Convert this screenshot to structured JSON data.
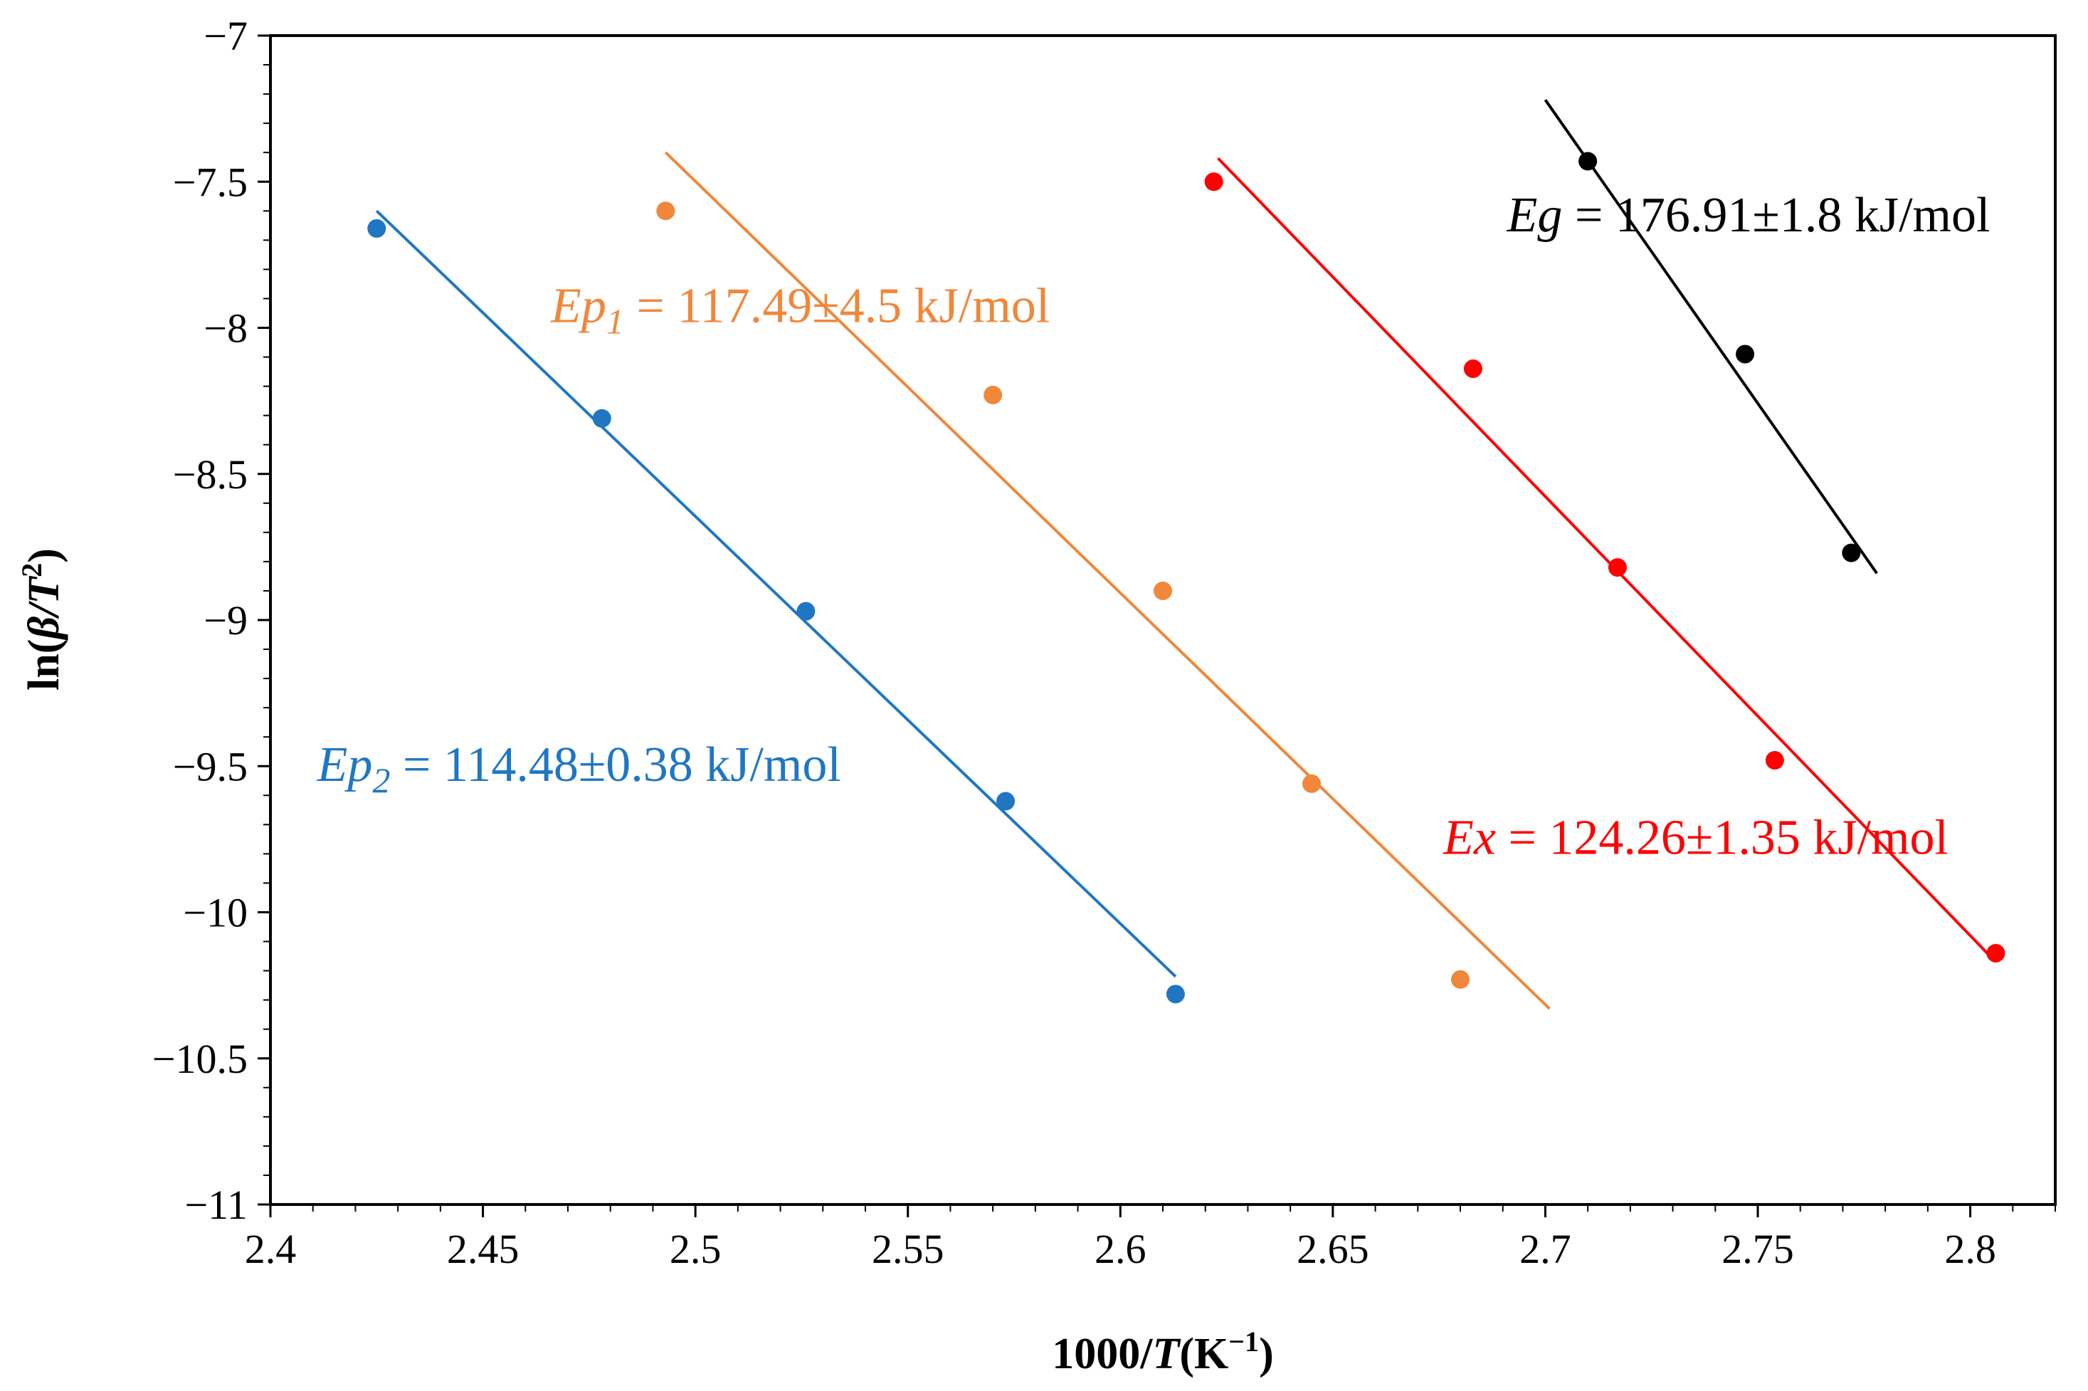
{
  "chart_data": {
    "type": "scatter",
    "xlabel_prefix": "1000/",
    "xlabel_var": "T",
    "xlabel_unit": "(K",
    "xlabel_exp": "−1",
    "xlabel_close": ")",
    "ylabel_prefix": "ln(",
    "ylabel_var": "β/T",
    "ylabel_exp": "2",
    "ylabel_close": ")",
    "xlim": [
      2.4,
      2.82
    ],
    "ylim": [
      -11,
      -7
    ],
    "x_ticks": [
      2.4,
      2.45,
      2.5,
      2.55,
      2.6,
      2.65,
      2.7,
      2.75,
      2.8
    ],
    "x_tick_labels": [
      "2.4",
      "2.45",
      "2.5",
      "2.55",
      "2.6",
      "2.65",
      "2.7",
      "2.75",
      "2.8"
    ],
    "y_ticks": [
      -7,
      -7.5,
      -8,
      -8.5,
      -9,
      -9.5,
      -10,
      -10.5,
      -11
    ],
    "y_tick_labels": [
      "−7",
      "−7.5",
      "−8",
      "−8.5",
      "−9",
      "−9.5",
      "−10",
      "−10.5",
      "−11"
    ],
    "grid": false,
    "series": [
      {
        "name": "Ep2",
        "color": "#1f77c4",
        "points": [
          [
            2.425,
            -7.66
          ],
          [
            2.478,
            -8.31
          ],
          [
            2.526,
            -8.97
          ],
          [
            2.573,
            -9.62
          ],
          [
            2.613,
            -10.28
          ]
        ],
        "fit": [
          [
            2.425,
            -7.6
          ],
          [
            2.613,
            -10.22
          ]
        ],
        "label_main": "Ep",
        "label_sub": "2",
        "label_value": " = 114.48±0.38 kJ/mol",
        "label_pos": [
          2.411,
          -9.55
        ]
      },
      {
        "name": "Ep1",
        "color": "#f0873a",
        "points": [
          [
            2.493,
            -7.6
          ],
          [
            2.57,
            -8.23
          ],
          [
            2.61,
            -8.9
          ],
          [
            2.645,
            -9.56
          ],
          [
            2.68,
            -10.23
          ]
        ],
        "fit": [
          [
            2.493,
            -7.4
          ],
          [
            2.701,
            -10.33
          ]
        ],
        "label_main": "Ep",
        "label_sub": "1",
        "label_value": " = 117.49±4.5 kJ/mol",
        "label_pos": [
          2.466,
          -7.98
        ]
      },
      {
        "name": "Ex",
        "color": "#ff0000",
        "points": [
          [
            2.622,
            -7.5
          ],
          [
            2.683,
            -8.14
          ],
          [
            2.717,
            -8.82
          ],
          [
            2.754,
            -9.48
          ],
          [
            2.806,
            -10.14
          ]
        ],
        "fit": [
          [
            2.623,
            -7.42
          ],
          [
            2.806,
            -10.17
          ]
        ],
        "label_main": "Ex",
        "label_sub": "",
        "label_value": " = 124.26±1.35 kJ/mol",
        "label_pos": [
          2.676,
          -9.8
        ]
      },
      {
        "name": "Eg",
        "color": "#000000",
        "points": [
          [
            2.71,
            -7.43
          ],
          [
            2.747,
            -8.09
          ],
          [
            2.772,
            -8.77
          ]
        ],
        "fit": [
          [
            2.7,
            -7.22
          ],
          [
            2.778,
            -8.84
          ]
        ],
        "label_main": "Eg",
        "label_sub": "",
        "label_value": " = 176.91±1.8 kJ/mol",
        "label_pos": [
          2.691,
          -7.67
        ]
      }
    ]
  }
}
